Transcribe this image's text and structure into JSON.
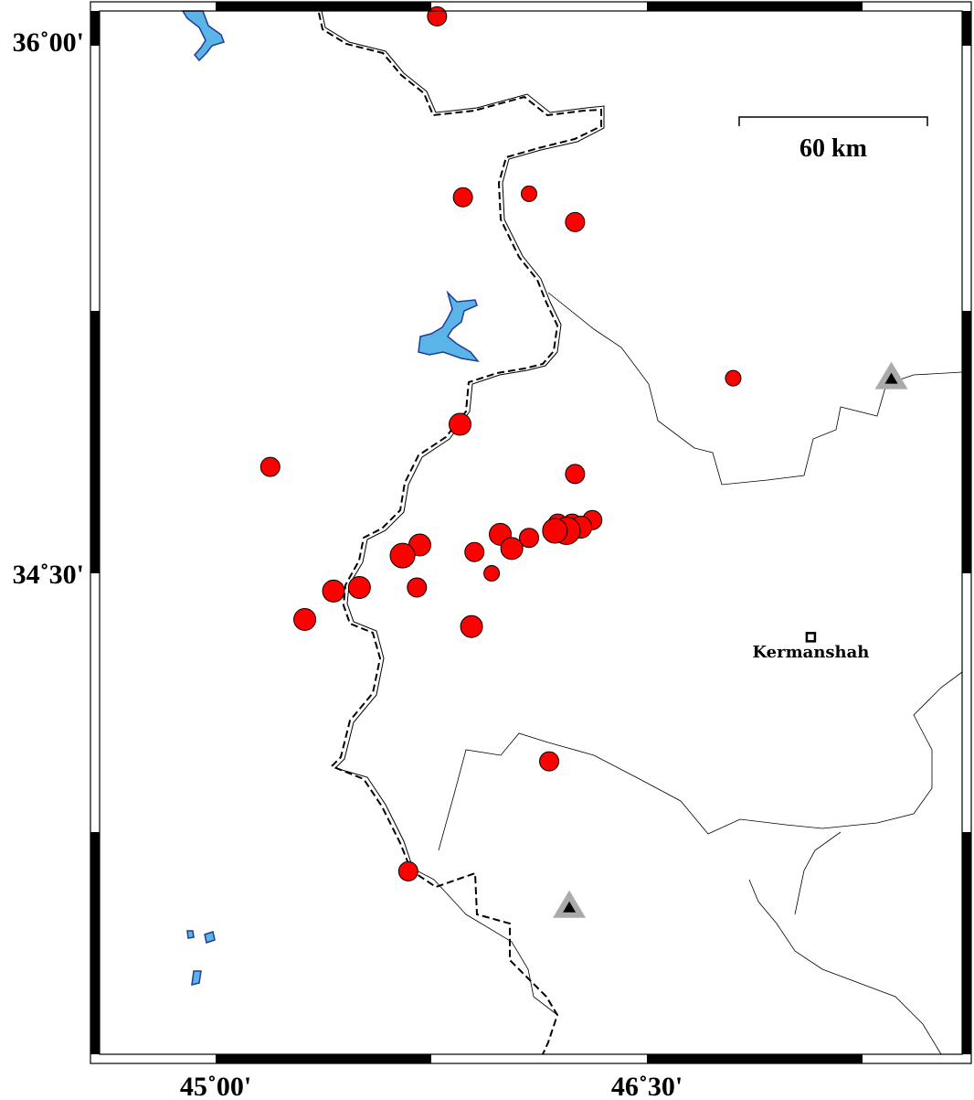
{
  "map": {
    "projection": "mercator",
    "lon_range": [
      44.566,
      47.566
    ],
    "lat_range": [
      33.35,
      36.085
    ],
    "colors": {
      "event": "#ff0000",
      "lake": "#5ab4e6",
      "lake_outline": "#1f3c9c",
      "volcano_halo": "#aaaaaa",
      "volcano": "#000000"
    },
    "x_ticks": [
      {
        "lon": 45.0,
        "label": "45˚00'"
      },
      {
        "lon": 46.5,
        "label": "46˚30'"
      }
    ],
    "y_ticks": [
      {
        "lat": 36.0,
        "label": "36˚00'"
      },
      {
        "lat": 34.5,
        "label": "34˚30'"
      }
    ],
    "scale_bar": {
      "label": "60 km",
      "length_km": 60
    },
    "city": {
      "name": "Kermanshah",
      "lon": 47.07,
      "lat": 34.32
    },
    "volcanoes": [
      {
        "lon": 47.35,
        "lat": 35.05
      },
      {
        "lon": 46.23,
        "lat": 33.56
      }
    ],
    "events": [
      {
        "lon": 45.77,
        "lat": 36.07,
        "size": 2
      },
      {
        "lon": 45.86,
        "lat": 35.56,
        "size": 2
      },
      {
        "lon": 46.09,
        "lat": 35.57,
        "size": 1
      },
      {
        "lon": 46.25,
        "lat": 35.49,
        "size": 2
      },
      {
        "lon": 46.8,
        "lat": 35.05,
        "size": 1
      },
      {
        "lon": 45.85,
        "lat": 34.92,
        "size": 3
      },
      {
        "lon": 45.19,
        "lat": 34.8,
        "size": 2
      },
      {
        "lon": 46.25,
        "lat": 34.78,
        "size": 2
      },
      {
        "lon": 46.19,
        "lat": 34.64,
        "size": 2
      },
      {
        "lon": 46.24,
        "lat": 34.64,
        "size": 2
      },
      {
        "lon": 46.31,
        "lat": 34.65,
        "size": 2
      },
      {
        "lon": 46.27,
        "lat": 34.63,
        "size": 3
      },
      {
        "lon": 46.22,
        "lat": 34.62,
        "size": 5
      },
      {
        "lon": 46.18,
        "lat": 34.62,
        "size": 4
      },
      {
        "lon": 46.09,
        "lat": 34.6,
        "size": 2
      },
      {
        "lon": 45.99,
        "lat": 34.61,
        "size": 3
      },
      {
        "lon": 46.03,
        "lat": 34.57,
        "size": 3
      },
      {
        "lon": 45.9,
        "lat": 34.56,
        "size": 2
      },
      {
        "lon": 45.71,
        "lat": 34.58,
        "size": 3
      },
      {
        "lon": 45.65,
        "lat": 34.55,
        "size": 4
      },
      {
        "lon": 45.96,
        "lat": 34.5,
        "size": 1
      },
      {
        "lon": 45.7,
        "lat": 34.46,
        "size": 2
      },
      {
        "lon": 45.5,
        "lat": 34.46,
        "size": 3
      },
      {
        "lon": 45.41,
        "lat": 34.45,
        "size": 3
      },
      {
        "lon": 45.31,
        "lat": 34.37,
        "size": 3
      },
      {
        "lon": 45.89,
        "lat": 34.35,
        "size": 3
      },
      {
        "lon": 46.16,
        "lat": 33.97,
        "size": 2
      },
      {
        "lon": 45.67,
        "lat": 33.66,
        "size": 2
      }
    ]
  }
}
